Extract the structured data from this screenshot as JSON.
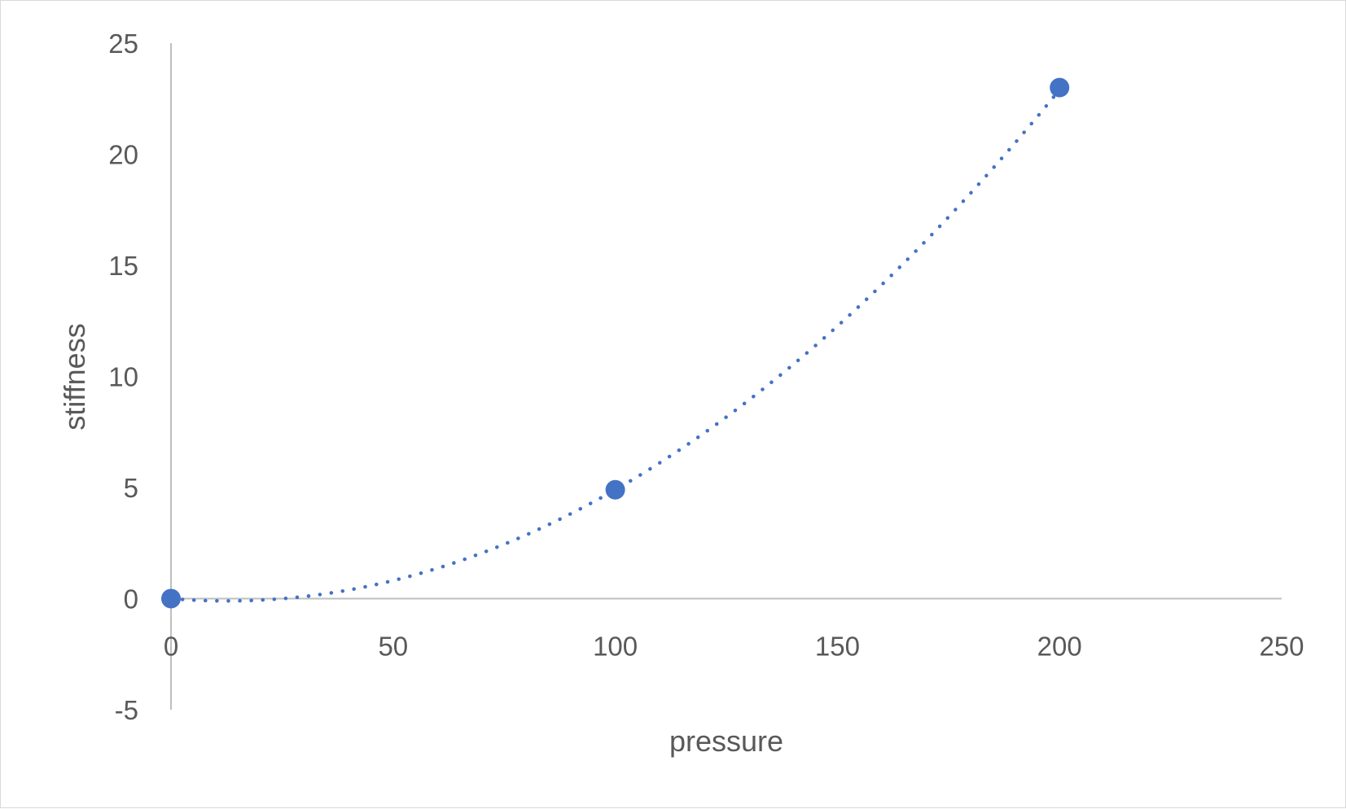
{
  "chart_data": {
    "type": "scatter",
    "xlabel": "pressure",
    "ylabel": "stiffness",
    "xlim": [
      0,
      250
    ],
    "ylim": [
      -5,
      25
    ],
    "x_ticks": [
      "0",
      "50",
      "100",
      "150",
      "200",
      "250"
    ],
    "y_ticks": [
      "25",
      "20",
      "15",
      "10",
      "5",
      "0",
      "-5"
    ],
    "grid": false,
    "legend": "none",
    "series": [
      {
        "x": [
          0,
          100,
          200
        ],
        "y": [
          0,
          4.9,
          23.0
        ]
      }
    ],
    "trendline": {
      "type": "polynomial",
      "order": 2,
      "style": "dotted",
      "coefficients": [
        0.000655,
        -0.0165,
        0.0
      ]
    },
    "colors": {
      "series": "#4472C4",
      "axis": "#bfbfbf",
      "text": "#595959"
    }
  }
}
